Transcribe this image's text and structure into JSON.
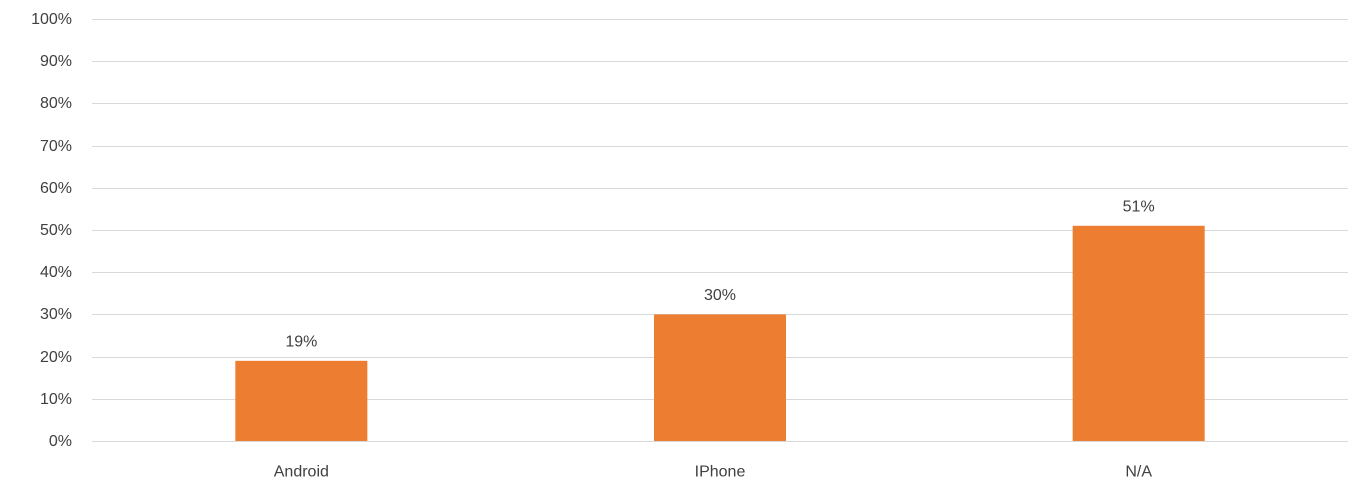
{
  "chart_data": {
    "type": "bar",
    "categories": [
      "Android",
      "IPhone",
      "N/A"
    ],
    "values": [
      19,
      30,
      51
    ],
    "data_labels": [
      "19%",
      "30%",
      "51%"
    ],
    "ylim": [
      0,
      100
    ],
    "y_ticks": [
      0,
      10,
      20,
      30,
      40,
      50,
      60,
      70,
      80,
      90,
      100
    ],
    "y_tick_labels": [
      "0%",
      "10%",
      "20%",
      "30%",
      "40%",
      "50%",
      "60%",
      "70%",
      "80%",
      "90%",
      "100%"
    ],
    "grid": true,
    "legend": "none",
    "bar_color": "#ED7D31",
    "grid_color": "#D9D9D9",
    "text_color": "#404040"
  }
}
